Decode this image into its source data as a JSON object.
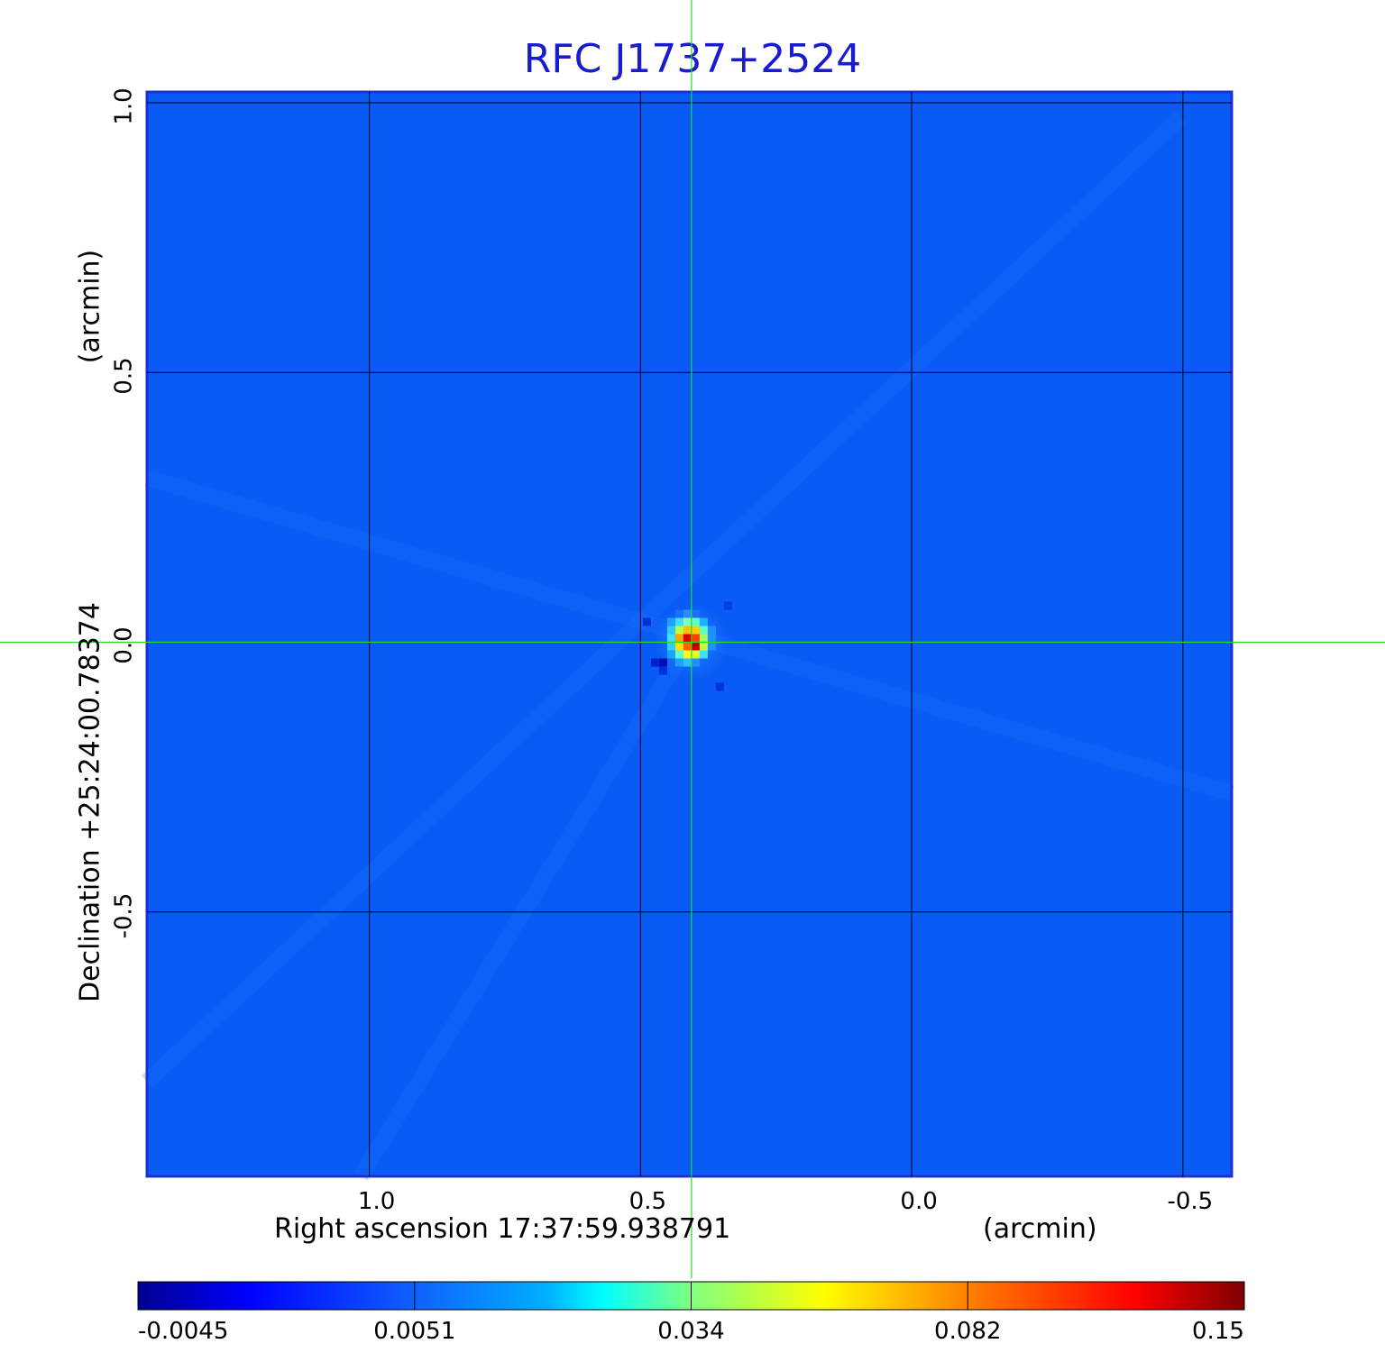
{
  "chart_data": {
    "type": "heatmap",
    "title": "RFC J1737+2524",
    "xlabel": "Right ascension  17:37:59.938791",
    "x_unit": "(arcmin)",
    "ylabel": "Declination  +25:24:00.78374",
    "y_unit": "(arcmin)",
    "x_ticks": [
      "1.0",
      "0.5",
      "0.0",
      "-0.5"
    ],
    "y_ticks": [
      "1.0",
      "0.5",
      "0.0",
      "-0.5"
    ],
    "x_tick_values": [
      1.0,
      0.5,
      0.0,
      -0.5
    ],
    "y_tick_values": [
      1.0,
      0.5,
      0.0,
      -0.5
    ],
    "xlim": [
      1.41,
      -0.59
    ],
    "ylim": [
      -0.99,
      1.02
    ],
    "grid": true,
    "crosshair": {
      "x": 0.406,
      "y": 0.0
    },
    "source_peak": {
      "x": 0.406,
      "y": 0.0,
      "value": 0.15
    },
    "background_level": 0.0005,
    "colorbar": {
      "ticks": [
        "-0.0045",
        "0.0051",
        "0.034",
        "0.082",
        "0.15"
      ],
      "min": -0.0045,
      "max": 0.15,
      "colormap": "jet"
    }
  },
  "colors": {
    "title": "#1a1acf",
    "background_map": "#0a5af5",
    "frame": "#1c2fd8",
    "grid": "#000000",
    "crosshair": "#22dd22"
  }
}
